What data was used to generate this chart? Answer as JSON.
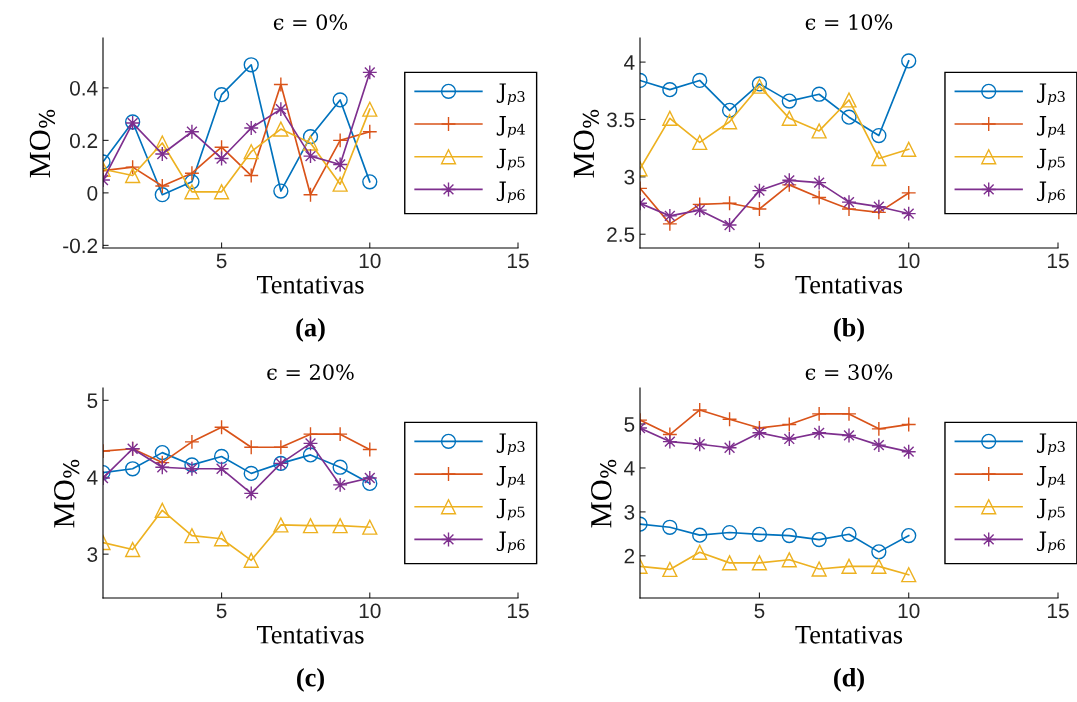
{
  "chart_data": [
    {
      "type": "line",
      "title": "ϵ = 0%",
      "xlabel": "Tentativas",
      "ylabel": "MO$_{%}$",
      "annotations": [
        "(a)"
      ],
      "x": [
        1,
        2,
        3,
        4,
        5,
        6,
        7,
        8,
        9,
        10
      ],
      "xlim": [
        1,
        15
      ],
      "xticks": [
        5,
        10,
        15
      ],
      "ylim": [
        -0.21,
        0.59
      ],
      "yticks": [
        -0.2,
        0,
        0.2,
        0.4
      ],
      "grid": false,
      "legend": "right",
      "series": [
        {
          "name": "J$_{p3}$",
          "color": "#0072bd",
          "marker": "circle",
          "values": [
            0.118,
            0.27,
            -0.007,
            0.042,
            0.374,
            0.488,
            0.007,
            0.214,
            0.354,
            0.042
          ]
        },
        {
          "name": "J$_{p4}$",
          "color": "#d95319",
          "marker": "plus",
          "values": [
            0.085,
            0.098,
            0.026,
            0.075,
            0.174,
            0.066,
            0.413,
            -0.007,
            0.2,
            0.233
          ]
        },
        {
          "name": "J$_{p5}$",
          "color": "#edb120",
          "marker": "triangle",
          "values": [
            0.09,
            0.066,
            0.19,
            0.004,
            0.004,
            0.157,
            0.243,
            0.19,
            0.033,
            0.319
          ]
        },
        {
          "name": "J$_{p6}$",
          "color": "#7e2f8e",
          "marker": "star",
          "values": [
            0.049,
            0.266,
            0.148,
            0.233,
            0.131,
            0.247,
            0.319,
            0.14,
            0.108,
            0.459
          ]
        }
      ]
    },
    {
      "type": "line",
      "title": "ϵ = 10%",
      "xlabel": "Tentativas",
      "ylabel": "MO$_{%}$",
      "annotations": [
        "(b)"
      ],
      "x": [
        1,
        2,
        3,
        4,
        5,
        6,
        7,
        8,
        9,
        10
      ],
      "xlim": [
        1,
        15
      ],
      "xticks": [
        5,
        10,
        15
      ],
      "ylim": [
        2.38,
        4.21
      ],
      "yticks": [
        2.5,
        3,
        3.5,
        4
      ],
      "grid": false,
      "legend": "right",
      "series": [
        {
          "name": "J$_{p3}$",
          "color": "#0072bd",
          "marker": "circle",
          "values": [
            3.84,
            3.76,
            3.84,
            3.58,
            3.81,
            3.66,
            3.72,
            3.52,
            3.36,
            4.01
          ]
        },
        {
          "name": "J$_{p4}$",
          "color": "#d95319",
          "marker": "plus",
          "values": [
            2.9,
            2.59,
            2.76,
            2.77,
            2.72,
            2.93,
            2.82,
            2.72,
            2.69,
            2.86
          ]
        },
        {
          "name": "J$_{p5}$",
          "color": "#edb120",
          "marker": "triangle",
          "values": [
            3.07,
            3.51,
            3.3,
            3.48,
            3.79,
            3.51,
            3.4,
            3.67,
            3.16,
            3.24
          ]
        },
        {
          "name": "J$_{p6}$",
          "color": "#7e2f8e",
          "marker": "star",
          "values": [
            2.77,
            2.66,
            2.71,
            2.58,
            2.88,
            2.97,
            2.95,
            2.78,
            2.74,
            2.68
          ]
        }
      ]
    },
    {
      "type": "line",
      "title": "ϵ = 20%",
      "xlabel": "Tentativas",
      "ylabel": "MO$_{%}$",
      "annotations": [
        "(c)"
      ],
      "x": [
        1,
        2,
        3,
        4,
        5,
        6,
        7,
        8,
        9,
        10
      ],
      "xlim": [
        1,
        15
      ],
      "xticks": [
        5,
        10,
        15
      ],
      "ylim": [
        2.43,
        5.16
      ],
      "yticks": [
        3,
        4,
        5
      ],
      "grid": false,
      "legend": "right",
      "series": [
        {
          "name": "J$_{p3}$",
          "color": "#0072bd",
          "marker": "circle",
          "values": [
            4.06,
            4.11,
            4.32,
            4.16,
            4.27,
            4.05,
            4.18,
            4.29,
            4.13,
            3.92
          ]
        },
        {
          "name": "J$_{p4}$",
          "color": "#d95319",
          "marker": "plus",
          "values": [
            4.34,
            4.37,
            4.19,
            4.46,
            4.65,
            4.39,
            4.39,
            4.56,
            4.56,
            4.36
          ]
        },
        {
          "name": "J$_{p5}$",
          "color": "#edb120",
          "marker": "triangle",
          "values": [
            3.15,
            3.06,
            3.57,
            3.24,
            3.2,
            2.92,
            3.38,
            3.37,
            3.37,
            3.35
          ]
        },
        {
          "name": "J$_{p6}$",
          "color": "#7e2f8e",
          "marker": "star",
          "values": [
            3.99,
            4.37,
            4.13,
            4.11,
            4.11,
            3.79,
            4.18,
            4.44,
            3.9,
            3.99
          ]
        }
      ]
    },
    {
      "type": "line",
      "title": "ϵ = 30%",
      "xlabel": "Tentativas",
      "ylabel": "MO$_{%}$",
      "annotations": [
        "(d)"
      ],
      "x": [
        1,
        2,
        3,
        4,
        5,
        6,
        7,
        8,
        9,
        10
      ],
      "xlim": [
        1,
        15
      ],
      "xticks": [
        5,
        10,
        15
      ],
      "ylim": [
        1.04,
        5.82
      ],
      "yticks": [
        2,
        3,
        4,
        5
      ],
      "grid": false,
      "legend": "right",
      "series": [
        {
          "name": "J$_{p3}$",
          "color": "#0072bd",
          "marker": "circle",
          "values": [
            2.72,
            2.65,
            2.47,
            2.53,
            2.49,
            2.46,
            2.37,
            2.49,
            2.09,
            2.46
          ]
        },
        {
          "name": "J$_{p4}$",
          "color": "#d95319",
          "marker": "plus",
          "values": [
            5.09,
            4.76,
            5.32,
            5.11,
            4.91,
            4.99,
            5.23,
            5.23,
            4.89,
            4.99
          ]
        },
        {
          "name": "J$_{p5}$",
          "color": "#edb120",
          "marker": "triangle",
          "values": [
            1.76,
            1.69,
            2.08,
            1.84,
            1.84,
            1.91,
            1.7,
            1.76,
            1.76,
            1.57
          ]
        },
        {
          "name": "J$_{p6}$",
          "color": "#7e2f8e",
          "marker": "star",
          "values": [
            4.91,
            4.6,
            4.54,
            4.46,
            4.8,
            4.66,
            4.8,
            4.74,
            4.52,
            4.37
          ]
        }
      ]
    }
  ]
}
